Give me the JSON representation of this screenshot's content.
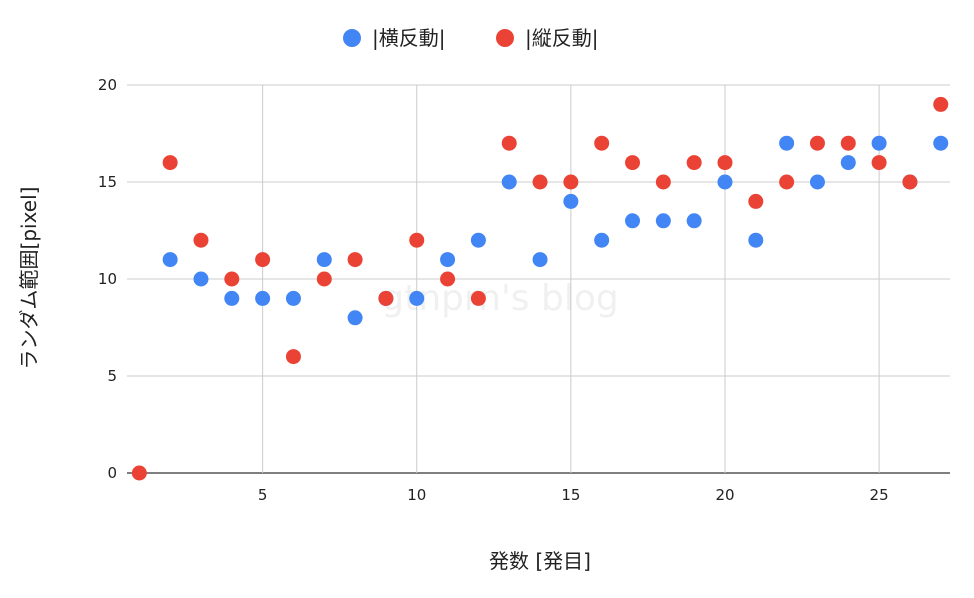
{
  "chart_data": {
    "type": "scatter",
    "xlabel": "発数 [発目]",
    "ylabel": "ランダム範囲[pixel]",
    "watermark": "gtnprn's blog",
    "xlim": [
      0.6,
      27.3
    ],
    "ylim": [
      0,
      20
    ],
    "xticks": [
      5,
      10,
      15,
      20,
      25
    ],
    "yticks": [
      0,
      5,
      10,
      15,
      20
    ],
    "grid": true,
    "legend_position": "top",
    "series": [
      {
        "name": "|横反動|",
        "color": "#4285F4",
        "x": [
          2,
          3,
          4,
          5,
          6,
          7,
          8,
          9,
          10,
          11,
          12,
          13,
          14,
          15,
          16,
          17,
          18,
          19,
          20,
          21,
          22,
          23,
          24,
          25,
          26,
          27
        ],
        "y": [
          11,
          10,
          9,
          9,
          9,
          11,
          8,
          9,
          9,
          11,
          12,
          15,
          11,
          14,
          12,
          13,
          13,
          13,
          15,
          12,
          17,
          15,
          16,
          17,
          15,
          17
        ]
      },
      {
        "name": "|縦反動|",
        "color": "#EA4335",
        "x": [
          1,
          2,
          3,
          4,
          5,
          6,
          7,
          8,
          9,
          10,
          11,
          12,
          13,
          14,
          15,
          16,
          17,
          18,
          19,
          20,
          21,
          22,
          23,
          24,
          25,
          26,
          27
        ],
        "y": [
          0,
          16,
          12,
          10,
          11,
          6,
          10,
          11,
          9,
          12,
          10,
          9,
          17,
          15,
          15,
          17,
          16,
          15,
          16,
          16,
          14,
          15,
          17,
          17,
          16,
          15,
          19
        ]
      }
    ]
  }
}
